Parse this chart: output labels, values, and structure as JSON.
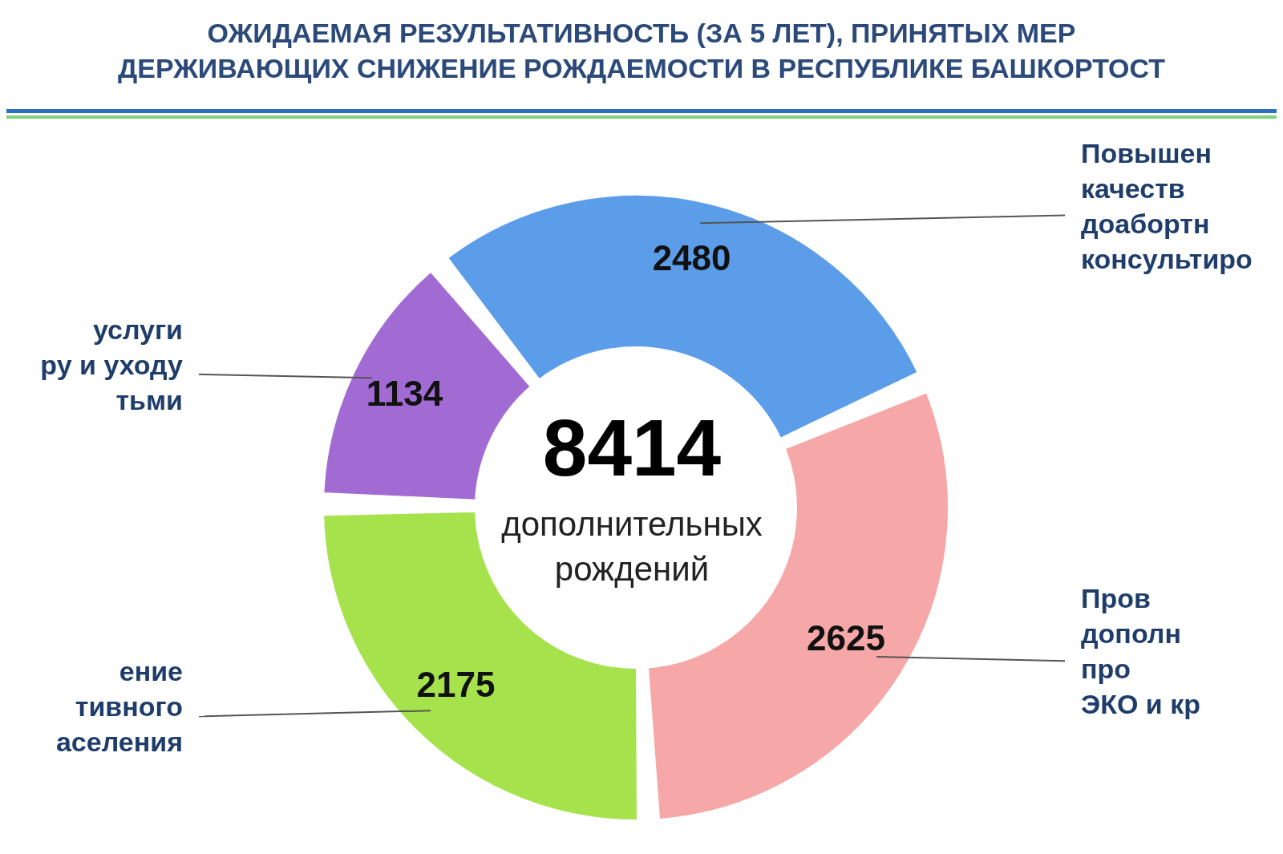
{
  "chart_data": {
    "type": "donut",
    "title": "ОЖИДАЕМАЯ РЕЗУЛЬТАТИВНОСТЬ (ЗА 5 ЛЕТ), ПРИНЯТЫХ МЕР\nДЕРЖИВАЮЩИХ СНИЖЕНИЕ РОЖДАЕМОСТИ В РЕСПУБЛИКЕ БАШКОРТОСТ",
    "categories": [
      "Повышен\nкачеств\nдоабортн\nконсультиро",
      "Пров\nдополн\nпро\nЭКО и кр",
      "ение\nтивного\nаселения",
      "услуги\nру и уходу\nтьми"
    ],
    "values": [
      2480,
      2625,
      2175,
      1134
    ],
    "colors": [
      "#5b9de9",
      "#f6a7a7",
      "#a6e24c",
      "#a26bd3"
    ],
    "data_labels": true,
    "annotations": [
      "8414",
      "дополнительных\nрождений"
    ]
  }
}
